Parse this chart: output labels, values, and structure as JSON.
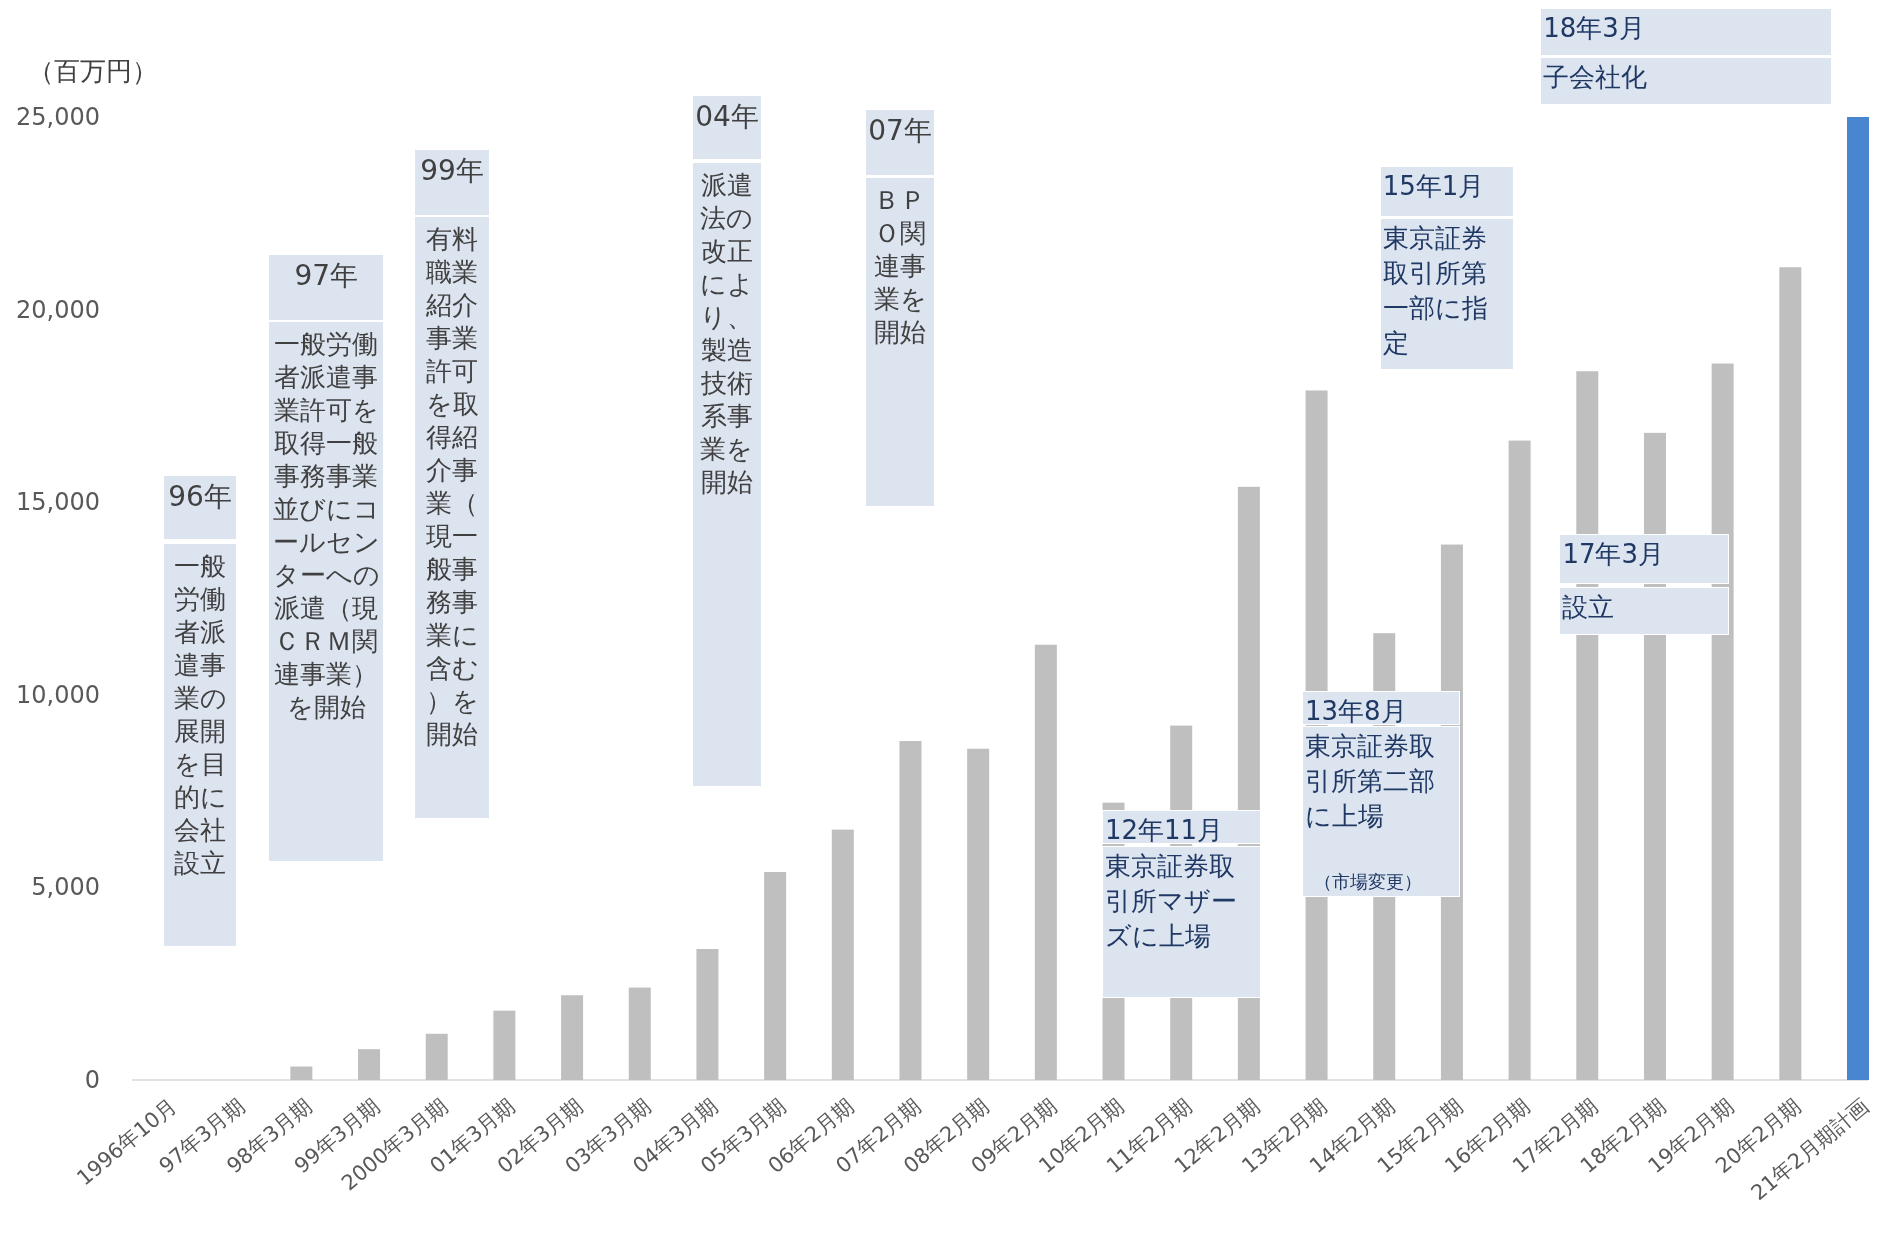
{
  "chart_data": {
    "type": "bar",
    "ylabel": "（百万円）",
    "categories": [
      "1996年10月",
      "97年3月期",
      "98年3月期",
      "99年3月期",
      "2000年3月期",
      "01年3月期",
      "02年3月期",
      "03年3月期",
      "04年3月期",
      "05年3月期",
      "06年2月期",
      "07年2月期",
      "08年2月期",
      "09年2月期",
      "10年2月期",
      "11年2月期",
      "12年2月期",
      "13年2月期",
      "14年2月期",
      "15年2月期",
      "16年2月期",
      "17年2月期",
      "18年2月期",
      "19年2月期",
      "20年2月期",
      "21年2月期計画"
    ],
    "values": [
      0,
      0,
      350,
      800,
      1200,
      1800,
      2200,
      2400,
      3400,
      5400,
      6500,
      8800,
      8600,
      11300,
      7200,
      9200,
      15400,
      17900,
      11600,
      13900,
      16600,
      18400,
      16800,
      18600,
      21100,
      25000
    ],
    "colors": [
      "#bfbfbf",
      "#bfbfbf",
      "#bfbfbf",
      "#bfbfbf",
      "#bfbfbf",
      "#bfbfbf",
      "#bfbfbf",
      "#bfbfbf",
      "#bfbfbf",
      "#bfbfbf",
      "#bfbfbf",
      "#bfbfbf",
      "#bfbfbf",
      "#bfbfbf",
      "#bfbfbf",
      "#bfbfbf",
      "#bfbfbf",
      "#bfbfbf",
      "#bfbfbf",
      "#bfbfbf",
      "#bfbfbf",
      "#bfbfbf",
      "#bfbfbf",
      "#bfbfbf",
      "#bfbfbf",
      "#4a86d0"
    ],
    "ylim": [
      0,
      25000
    ],
    "yticks": [
      0,
      {
        "value": 5000,
        "label": "5,000"
      },
      {
        "value": 10000,
        "label": "10,000"
      },
      {
        "value": 15000,
        "label": "15,000"
      },
      {
        "value": 20000,
        "label": "20,000"
      },
      {
        "value": 25000,
        "label": "25,000"
      }
    ],
    "annotations": [
      "96年",
      "一般労働者派遣事業の展開を目的に会社設立",
      "97年",
      "一般労働者派遣事業許可を取得一般事務事業並びにコールセンターへの派遣（現ＣＲＭ関連事業）を開始",
      "99年",
      "有料職業紹介事業許可を取得紹介事業（現一般事務事業に含む）を開始",
      "04年",
      "派遣法の改正により、製造技術系事業を開始",
      "07年",
      "ＢＰＯ関連事業を開始",
      "12年11月",
      "東京証券取引所マザーズに上場",
      "13年8月",
      "東京証券取引所第二部に上場",
      "（市場変更）",
      "15年1月",
      "東京証券取引所第一部に指定",
      "17年3月",
      "設立",
      "18年3月",
      "子会社化"
    ]
  }
}
